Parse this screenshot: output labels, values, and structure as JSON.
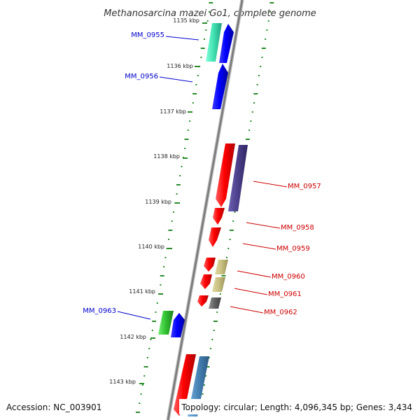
{
  "title": "Methanosarcina mazei Go1, complete genome",
  "ticks": [
    {
      "label": "1135 kbp"
    },
    {
      "label": "1136 kbp"
    },
    {
      "label": "1137 kbp"
    },
    {
      "label": "1138 kbp"
    },
    {
      "label": "1139 kbp"
    },
    {
      "label": "1140 kbp"
    },
    {
      "label": "1141 kbp"
    },
    {
      "label": "1142 kbp"
    },
    {
      "label": "1143 kbp"
    }
  ],
  "genes": [
    {
      "label": "MM_0955",
      "strand": "reverse",
      "color": "#0000cc"
    },
    {
      "label": "MM_0956",
      "strand": "reverse",
      "color": "#0000cc"
    },
    {
      "label": "MM_0957",
      "strand": "forward",
      "color": "#cc0000"
    },
    {
      "label": "MM_0958",
      "strand": "forward",
      "color": "#cc0000"
    },
    {
      "label": "MM_0959",
      "strand": "forward",
      "color": "#cc0000"
    },
    {
      "label": "MM_0960",
      "strand": "forward",
      "color": "#cc0000"
    },
    {
      "label": "MM_0961",
      "strand": "forward",
      "color": "#cc0000"
    },
    {
      "label": "MM_0962",
      "strand": "forward",
      "color": "#cc0000"
    },
    {
      "label": "MM_0963",
      "strand": "reverse",
      "color": "#0000cc"
    }
  ],
  "colors": {
    "forward_cds": "#ff0000",
    "reverse_cds": "#0000ff",
    "backbone": "#888888",
    "ticks": "#2a8a2a",
    "cog_aqua": "#40e0b0",
    "cog_purple": "#4b3f8a",
    "cog_khaki": "#c8c080",
    "cog_grey": "#606060",
    "cog_green": "#30c030",
    "cog_steelblue": "#4682b4"
  },
  "footer": {
    "accession": "Accession: NC_003901",
    "stats": "Topology: circular; Length: 4,096,345 bp; Genes: 3,434"
  }
}
